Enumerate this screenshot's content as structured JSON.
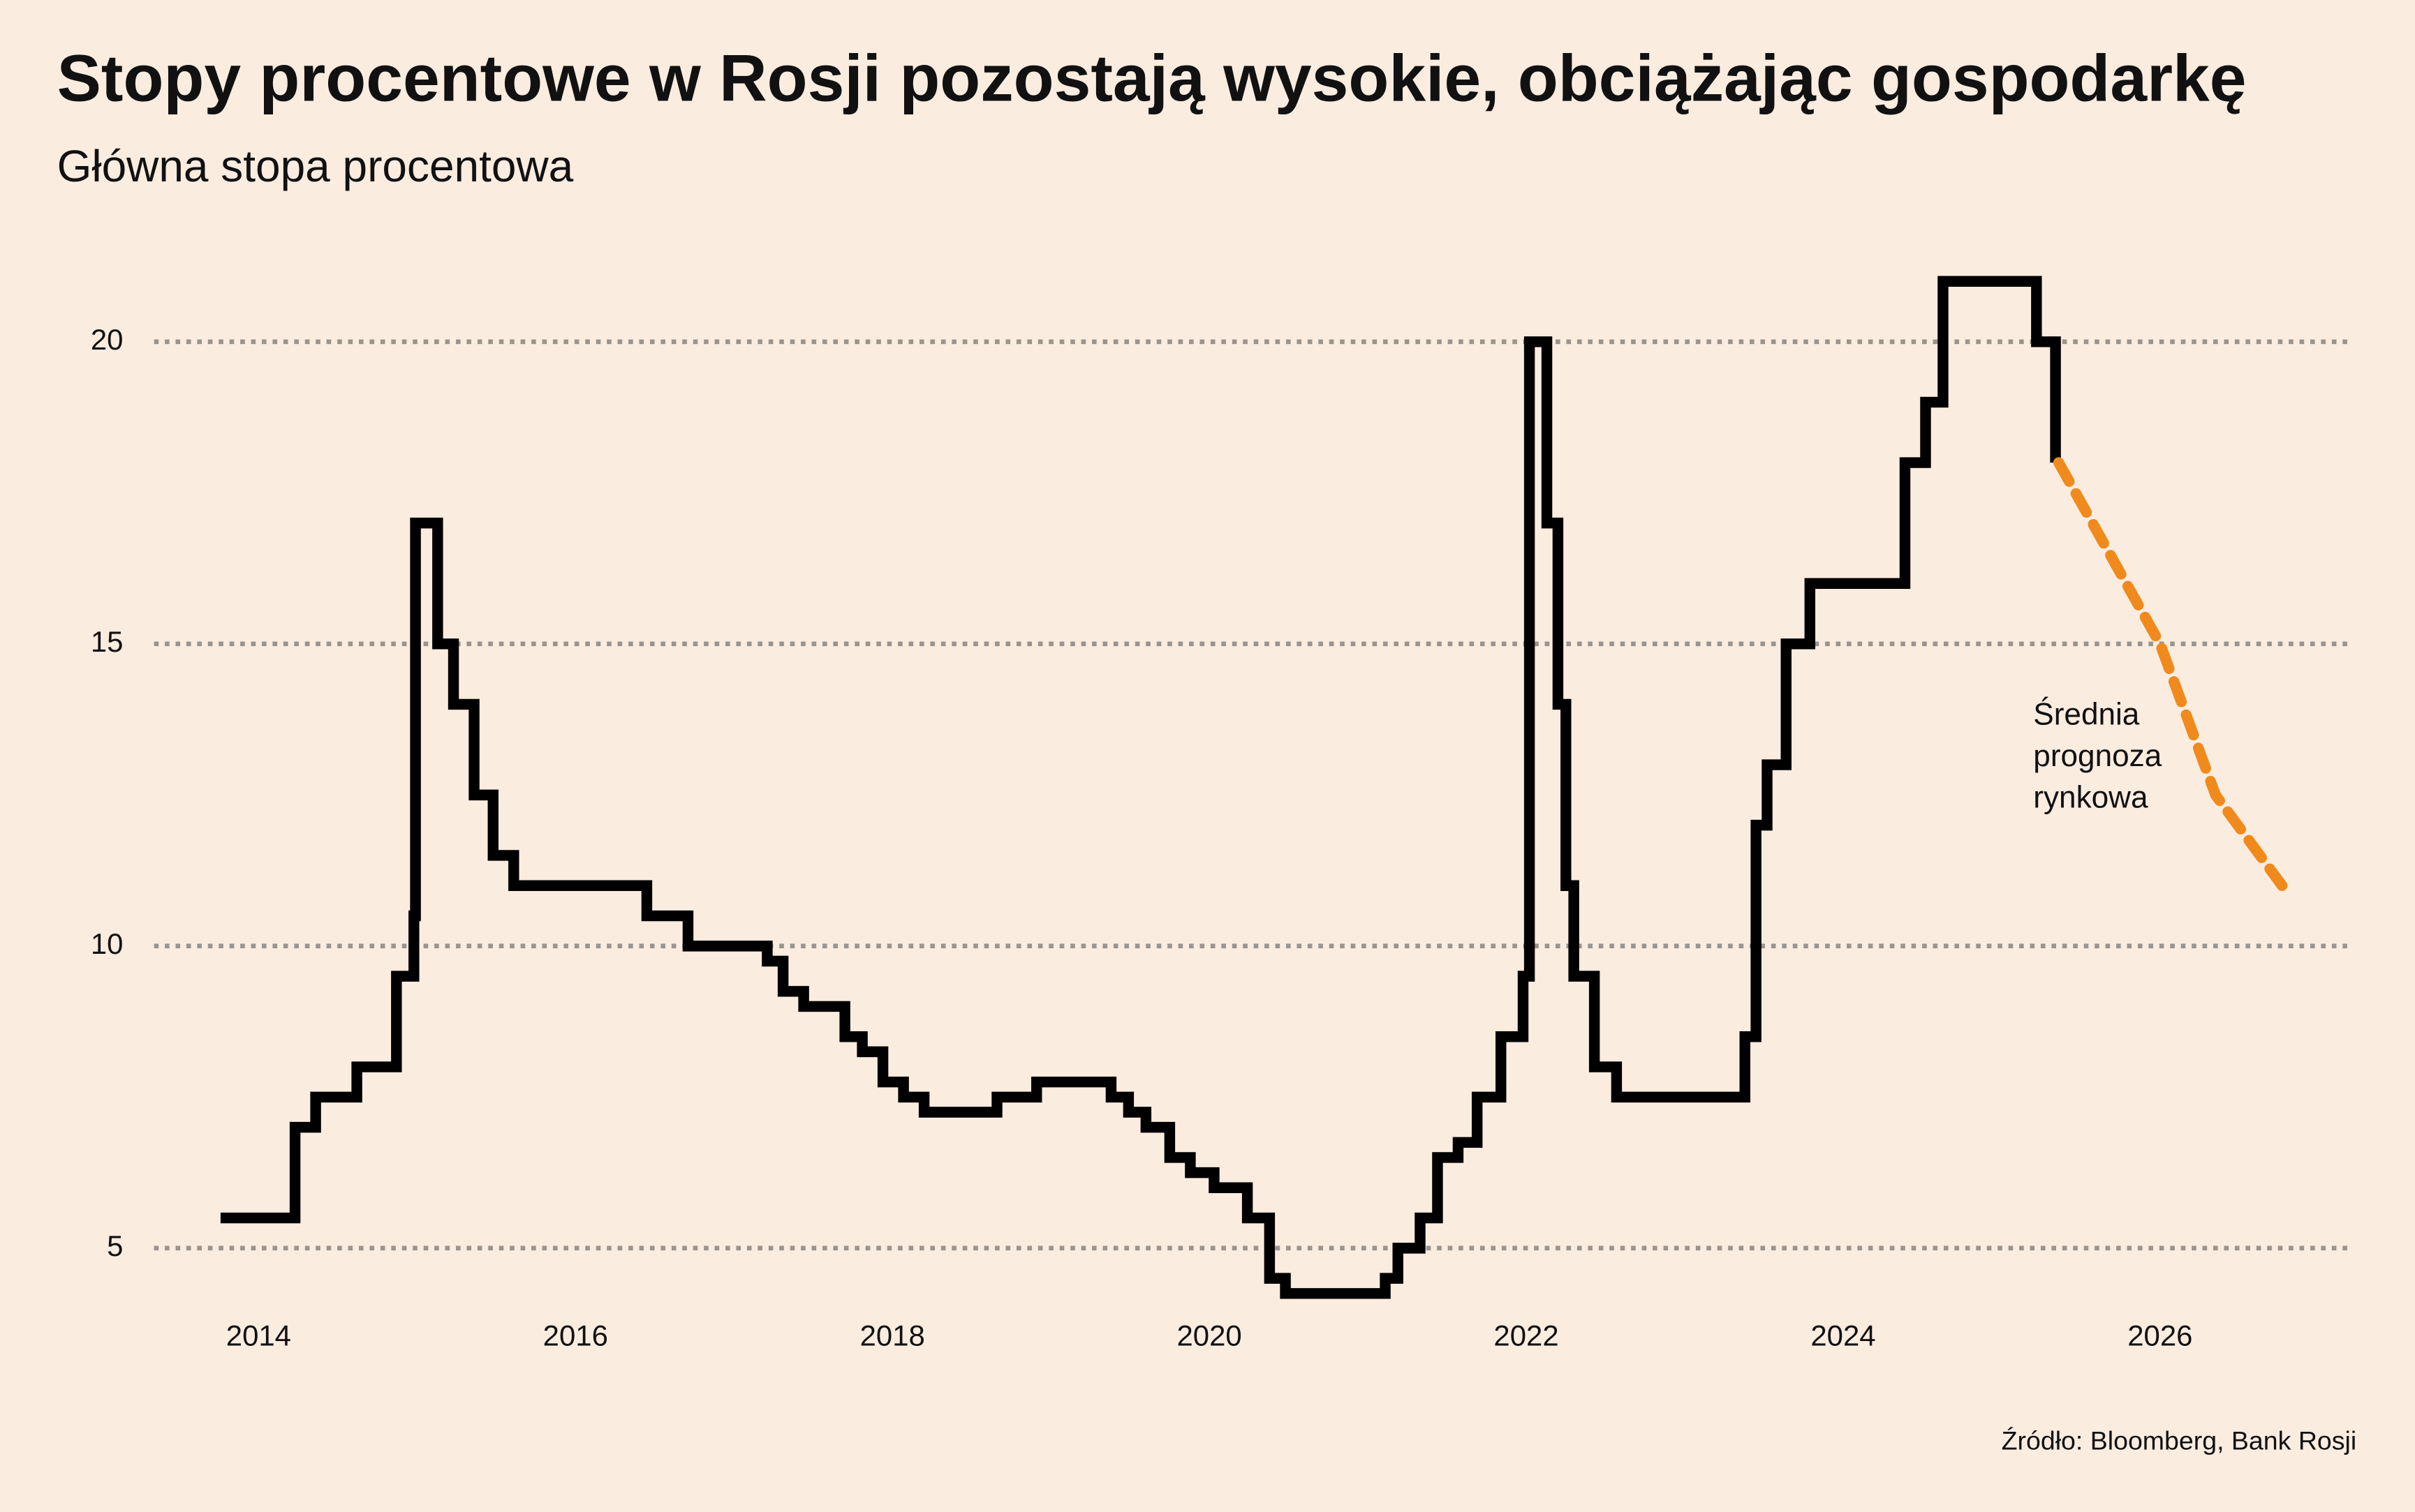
{
  "chart_data": {
    "type": "line",
    "title": "Stopy procentowe w Rosji pozostają wysokie, obciążając gospodarkę",
    "subtitle": "Główna stopa procentowa",
    "source": "Źródło: Bloomberg, Bank Rosji",
    "annotations": [
      {
        "lines": [
          "Średnia",
          "prognoza",
          "rynkowa"
        ],
        "x": 2025.2,
        "y": 13.8
      }
    ],
    "xlim": [
      2013.34,
      2027.22
    ],
    "ylim": [
      4,
      21.5
    ],
    "xticks": [
      2014,
      2016,
      2018,
      2020,
      2022,
      2024,
      2026
    ],
    "yticks": [
      5,
      10,
      15,
      20
    ],
    "grid": true,
    "series": [
      {
        "color": "#000000",
        "step": true,
        "dashed": false,
        "x": [
          2013.76,
          2014.23,
          2014.36,
          2014.62,
          2014.87,
          2014.98,
          2014.99,
          2015.13,
          2015.23,
          2015.36,
          2015.48,
          2015.61,
          2016.45,
          2016.71,
          2017.21,
          2017.31,
          2017.44,
          2017.7,
          2017.81,
          2017.94,
          2018.07,
          2018.2,
          2018.66,
          2018.91,
          2019.38,
          2019.49,
          2019.6,
          2019.75,
          2019.88,
          2020.03,
          2020.24,
          2020.38,
          2020.48,
          2021.11,
          2021.19,
          2021.33,
          2021.44,
          2021.57,
          2021.69,
          2021.84,
          2021.98,
          2022.02,
          2022.13,
          2022.2,
          2022.25,
          2022.3,
          2022.43,
          2022.57,
          2023.38,
          2023.45,
          2023.52,
          2023.64,
          2023.79,
          2024.39,
          2024.52,
          2024.63,
          2025.22,
          2025.34
        ],
        "values": [
          5.5,
          7,
          7.5,
          8,
          9.5,
          10.5,
          17,
          15,
          14,
          12.5,
          11.5,
          11,
          10.5,
          10,
          9.75,
          9.25,
          9,
          8.5,
          8.25,
          7.75,
          7.5,
          7.25,
          7.5,
          7.75,
          7.5,
          7.25,
          7,
          6.5,
          6.25,
          6,
          5.5,
          4.5,
          4.25,
          4.5,
          5,
          5.5,
          6.5,
          6.75,
          7.5,
          8.5,
          9.5,
          20,
          17,
          14,
          11,
          9.5,
          8,
          7.5,
          8.5,
          12,
          13,
          15,
          16,
          18,
          19,
          21,
          20,
          18
        ]
      },
      {
        "color": "#f08a1c",
        "step": false,
        "dashed": true,
        "x": [
          2025.36,
          2026.0,
          2026.35,
          2026.77
        ],
        "values": [
          18,
          15,
          12.5,
          11
        ]
      }
    ]
  }
}
